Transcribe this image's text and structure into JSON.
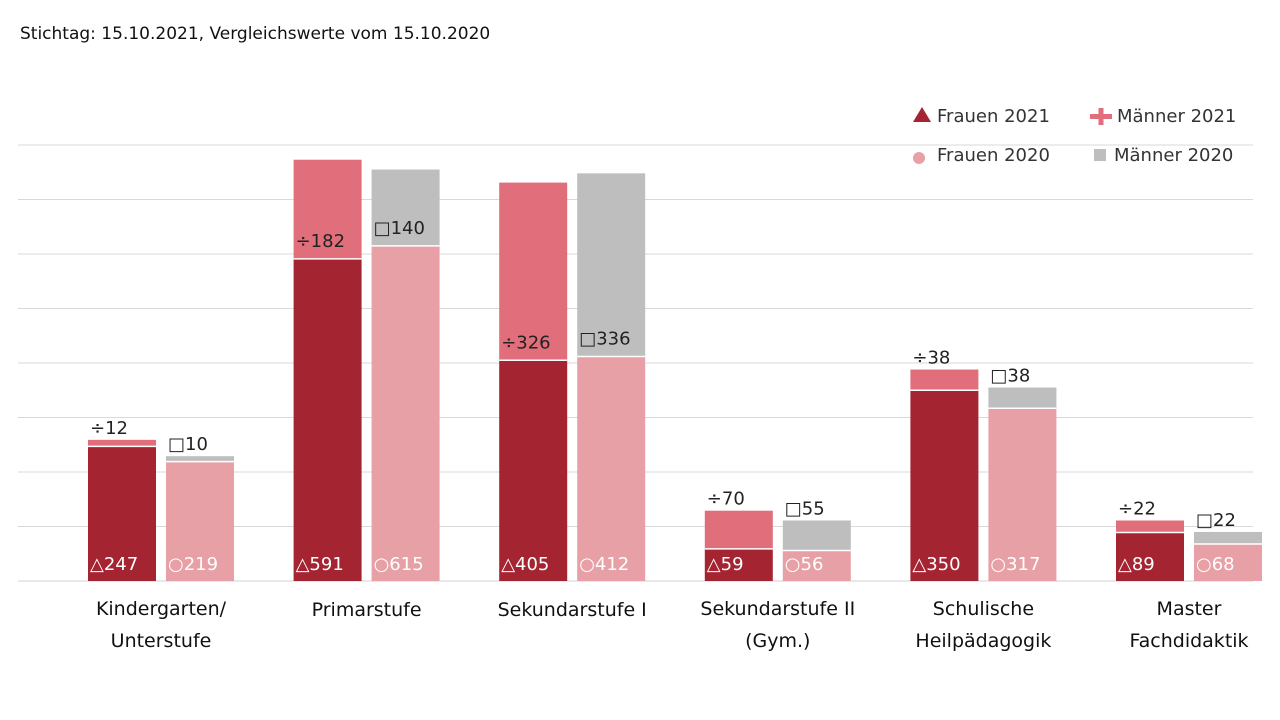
{
  "chart_data": {
    "type": "bar",
    "subtitle": "Stichtag: 15.10.2021, Vergleichswerte vom 15.10.2020",
    "categories": [
      [
        "Kindergarten/",
        "Unterstufe"
      ],
      [
        "Primarstufe"
      ],
      [
        "Sekundarstufe I"
      ],
      [
        "Sekundarstufe II",
        "(Gym.)"
      ],
      [
        "Schulische",
        "Heilpädagogik"
      ],
      [
        "Master",
        "Fachdidaktik"
      ]
    ],
    "series": [
      {
        "name": "Frauen 2021",
        "values": [
          247,
          591,
          405,
          59,
          350,
          89
        ],
        "color": "#a52431",
        "marker": "△"
      },
      {
        "name": "Männer 2021",
        "values": [
          12,
          182,
          326,
          70,
          38,
          22
        ],
        "color": "#e06f7b",
        "marker": "÷"
      },
      {
        "name": "Frauen 2020",
        "values": [
          219,
          615,
          412,
          56,
          317,
          68
        ],
        "color": "#e8a0a7",
        "marker": "○"
      },
      {
        "name": "Männer 2020",
        "values": [
          10,
          140,
          336,
          55,
          38,
          22
        ],
        "color": "#bebebe",
        "marker": "□"
      }
    ],
    "stacks": [
      {
        "year": "2021",
        "bottom": "Frauen 2021",
        "top": "Männer 2021"
      },
      {
        "year": "2020",
        "bottom": "Frauen 2020",
        "top": "Männer 2020"
      }
    ],
    "ylim": [
      0,
      800
    ],
    "grid": true,
    "legend_position": "top-right",
    "gridline_color": "#d9d9d9"
  }
}
